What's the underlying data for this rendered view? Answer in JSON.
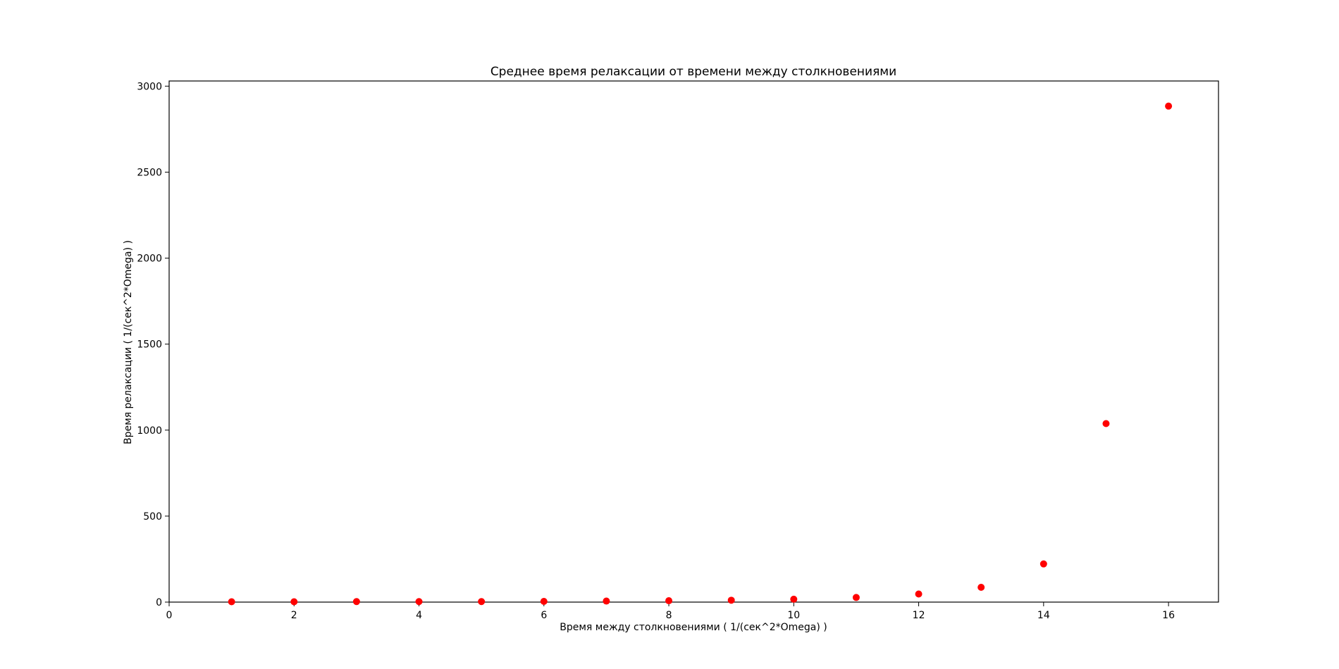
{
  "chart_data": {
    "type": "scatter",
    "title": "Среднее время релаксации от времени между столкновениями",
    "xlabel": "Время между столкновениями ( 1/(сек^2*Omega) )",
    "ylabel": "Время релаксации ( 1/(сек^2*Omega) )",
    "xlim": [
      0,
      16.8
    ],
    "ylim": [
      0,
      3030
    ],
    "xticks": [
      0,
      2,
      4,
      6,
      8,
      10,
      12,
      14,
      16
    ],
    "yticks": [
      0,
      500,
      1000,
      1500,
      2000,
      2500,
      3000
    ],
    "grid": false,
    "legend": "none",
    "marker_color": "#ff0000",
    "series": [
      {
        "x": [
          1,
          2,
          3,
          4,
          5,
          6,
          7,
          8,
          9,
          10,
          11,
          12,
          13,
          14,
          15,
          16
        ],
        "y": [
          2,
          2,
          3,
          3,
          3,
          4,
          6,
          8,
          11,
          17,
          27,
          47,
          86,
          222,
          1038,
          2884
        ]
      }
    ]
  }
}
